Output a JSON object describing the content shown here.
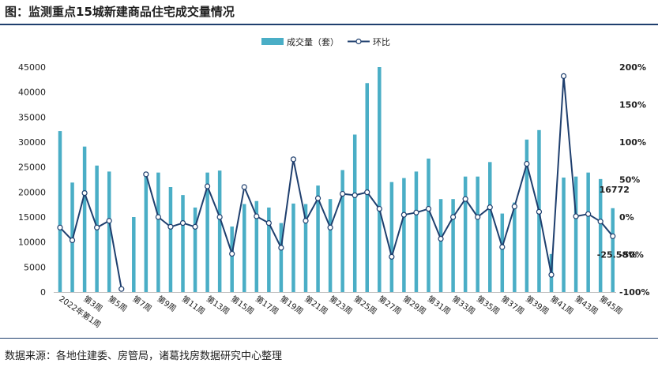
{
  "title": "图：监测重点15城新建商品住宅成交量情况",
  "source": "数据来源：各地住建委、房管局，诸葛找房数据研究中心整理",
  "colors": {
    "bar": "#4aaec6",
    "line": "#1f3f6e",
    "text": "#1f1f1f",
    "rule": "#1f3f6e"
  },
  "chart_data": {
    "type": "bar",
    "legend": {
      "position": "top",
      "items": [
        "成交量（套）",
        "环比"
      ]
    },
    "x_tick_labels": [
      "2022年第1周",
      "第3周",
      "第5周",
      "第7周",
      "第9周",
      "第11周",
      "第13周",
      "第15周",
      "第17周",
      "第19周",
      "第21周",
      "第23周",
      "第25周",
      "第27周",
      "第29周",
      "第31周",
      "第33周",
      "第35周",
      "第37周",
      "第39周",
      "第41周",
      "第43周",
      "第45周"
    ],
    "y_left": {
      "min": 0,
      "max": 45000,
      "step": 5000
    },
    "y_right": {
      "min": -100,
      "max": 200,
      "step": 50,
      "unit": "%"
    },
    "series": [
      {
        "name": "成交量（套）",
        "type": "bar",
        "axis": "left",
        "values": [
          32200,
          21900,
          29100,
          25300,
          24100,
          null,
          15000,
          23800,
          23900,
          21000,
          19400,
          16900,
          23900,
          24300,
          13100,
          17600,
          18200,
          16900,
          13800,
          17700,
          17600,
          21300,
          18600,
          24400,
          31500,
          41800,
          45000,
          22000,
          22800,
          24100,
          26700,
          18600,
          18600,
          23100,
          23100,
          26000,
          15700,
          17900,
          30500,
          32400,
          7600,
          22900,
          23100,
          23900,
          22600,
          16772
        ]
      },
      {
        "name": "环比",
        "type": "line",
        "axis": "right",
        "values": [
          -14,
          -31,
          32,
          -14,
          -5,
          -96,
          null,
          57,
          0,
          -13,
          -8,
          -13,
          41,
          0,
          -49,
          40,
          1,
          -8,
          -41,
          77,
          -5,
          25,
          -14,
          31,
          29,
          33,
          11,
          -53,
          3,
          6,
          11,
          -29,
          0,
          24,
          0,
          13,
          -40,
          14,
          71,
          7,
          -77,
          188,
          1,
          4,
          -6,
          -25.58
        ]
      }
    ],
    "annotations": [
      "16772",
      "-25.58%"
    ]
  }
}
